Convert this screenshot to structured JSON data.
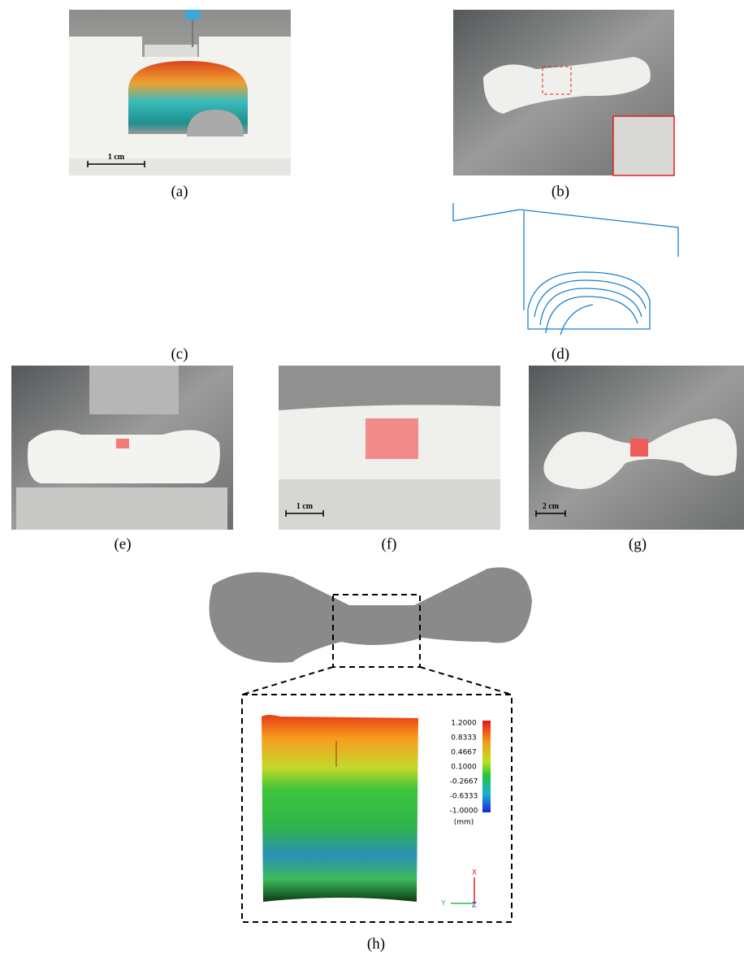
{
  "panels": [
    {
      "label": "(a)",
      "scale_bar": "1 cm"
    },
    {
      "label": "(b)"
    },
    {
      "label": "(c)"
    },
    {
      "label": "(d)"
    },
    {
      "label": "(e)"
    },
    {
      "label": "(f)",
      "scale_bar": "1 cm"
    },
    {
      "label": "(g)",
      "scale_bar": "2 cm"
    },
    {
      "label": "(h)"
    }
  ],
  "colorbar": {
    "ticks": [
      "1.2000",
      "0.8333",
      "0.4667",
      "0.1000",
      "-0.2667",
      "-0.6333",
      "-1.0000"
    ],
    "unit": "(mm)"
  },
  "axes": {
    "x": "X",
    "y": "Y",
    "z": "Z"
  }
}
